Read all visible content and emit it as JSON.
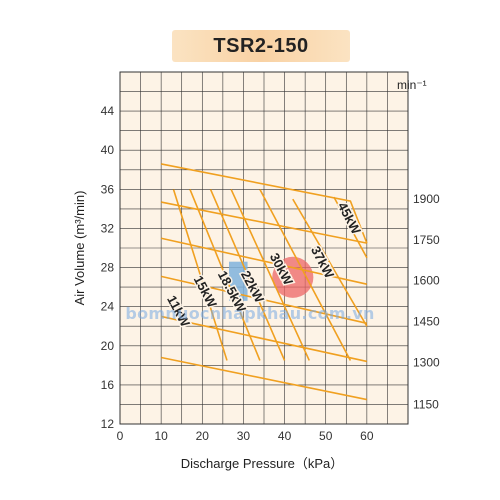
{
  "title": "TSR2-150",
  "watermark": "bomnuocnhapkhau.com.vn",
  "colors": {
    "plot_background": "#fdf3e6",
    "grid": "#333333",
    "curve": "#f0a020",
    "blue_region": "#7fb2dc",
    "red_region": "#ec6666",
    "title_background": "#fad6aa"
  },
  "chart_data": {
    "type": "line",
    "title": "TSR2-150",
    "xlabel": "Discharge Pressure（kPa）",
    "ylabel": "Air Volume (m³/min)",
    "xlim": [
      0,
      70
    ],
    "ylim": [
      12,
      48
    ],
    "x_ticks": [
      "0",
      "10",
      "20",
      "30",
      "40",
      "50",
      "60"
    ],
    "y_ticks": [
      "12",
      "16",
      "20",
      "24",
      "28",
      "32",
      "36",
      "40",
      "44"
    ],
    "grid": true,
    "right_axis_unit": "min⁻¹",
    "right_axis_labels": [
      {
        "label": "1900",
        "y": 35
      },
      {
        "label": "1750",
        "y": 30.8
      },
      {
        "label": "1600",
        "y": 26.7
      },
      {
        "label": "1450",
        "y": 22.5
      },
      {
        "label": "1300",
        "y": 18.3
      },
      {
        "label": "1150",
        "y": 14
      }
    ],
    "speed_lines": [
      {
        "name": "1900",
        "x": [
          10,
          56,
          60
        ],
        "y": [
          38.6,
          34.8,
          30.5
        ]
      },
      {
        "name": "1750",
        "x": [
          10,
          60
        ],
        "y": [
          34.7,
          30.5
        ]
      },
      {
        "name": "1600",
        "x": [
          10,
          60
        ],
        "y": [
          31,
          26.3
        ]
      },
      {
        "name": "1450",
        "x": [
          10,
          60
        ],
        "y": [
          27.1,
          22.3
        ]
      },
      {
        "name": "1300",
        "x": [
          10,
          60
        ],
        "y": [
          23,
          18.4
        ]
      },
      {
        "name": "1150",
        "x": [
          10,
          60
        ],
        "y": [
          18.8,
          14.5
        ]
      }
    ],
    "power_lines": [
      {
        "name": "11kW",
        "label": "11kW",
        "x": [
          13,
          26
        ],
        "y": [
          36,
          18.5
        ]
      },
      {
        "name": "15kW",
        "label": "15kW",
        "x": [
          17,
          34
        ],
        "y": [
          36,
          18.5
        ]
      },
      {
        "name": "18.5kW",
        "label": "18.5kW",
        "x": [
          22,
          40
        ],
        "y": [
          36,
          18.5
        ]
      },
      {
        "name": "22kW",
        "label": "22kW",
        "x": [
          27,
          46
        ],
        "y": [
          36,
          18.5
        ]
      },
      {
        "name": "30kW",
        "label": "30kW",
        "x": [
          34,
          56
        ],
        "y": [
          36,
          18.5
        ]
      },
      {
        "name": "37kW",
        "label": "37kW",
        "x": [
          42,
          60
        ],
        "y": [
          35,
          22
        ]
      },
      {
        "name": "45kW",
        "label": "45kW",
        "x": [
          52,
          60
        ],
        "y": [
          35.2,
          29
        ]
      }
    ],
    "power_labels": [
      {
        "text": "11kW",
        "x": 14,
        "y": 23.5
      },
      {
        "text": "15kW",
        "x": 20.5,
        "y": 25.5
      },
      {
        "text": "18.5kW",
        "x": 27,
        "y": 25.5
      },
      {
        "text": "22kW",
        "x": 32,
        "y": 26
      },
      {
        "text": "30kW",
        "x": 39,
        "y": 27.8
      },
      {
        "text": "37kW",
        "x": 49,
        "y": 28.5
      },
      {
        "text": "45kW",
        "x": 55.5,
        "y": 33
      }
    ],
    "highlight_blue": {
      "x": [
        26.5,
        31
      ],
      "y": [
        24.6,
        28.6
      ]
    },
    "highlight_red": {
      "cx": 42,
      "cy": 27,
      "rx": 5,
      "ry": 2.1
    }
  }
}
